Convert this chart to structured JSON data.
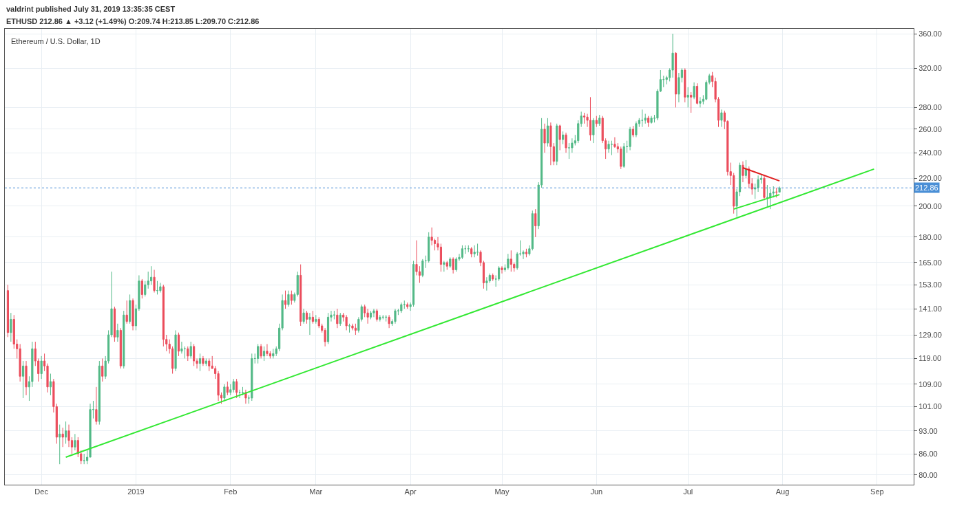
{
  "chart_data": {
    "type": "candlestick",
    "title": "Ethereum / U.S. Dollar, 1D",
    "subtitle": "valdrint published July 31, 2019 13:35:35 CEST",
    "annotations": [
      "ETHUSD 212.86 ▲ +3.12 (+1.49%) O:209.74 H:213.85 L:209.70 C:212.86"
    ],
    "log": "y",
    "grid": true,
    "xlim": [
      "2018-11-19",
      "2019-09-13"
    ],
    "xticks": [
      {
        "value": "2018-12-01",
        "label": "Dec"
      },
      {
        "value": "2019-01-01",
        "label": "2019"
      },
      {
        "value": "2019-02-01",
        "label": "Feb"
      },
      {
        "value": "2019-03-01",
        "label": "Mar"
      },
      {
        "value": "2019-04-01",
        "label": "Apr"
      },
      {
        "value": "2019-05-01",
        "label": "May"
      },
      {
        "value": "2019-06-01",
        "label": "Jun"
      },
      {
        "value": "2019-07-01",
        "label": "Jul"
      },
      {
        "value": "2019-08-01",
        "label": "Aug"
      },
      {
        "value": "2019-09-01",
        "label": "Sep"
      }
    ],
    "ylim": [
      77.4,
      366
    ],
    "yticks": [
      {
        "value": 80,
        "label": "80.00"
      },
      {
        "value": 86,
        "label": "86.00"
      },
      {
        "value": 93,
        "label": "93.00"
      },
      {
        "value": 101,
        "label": "101.00"
      },
      {
        "value": 109,
        "label": "109.00"
      },
      {
        "value": 119,
        "label": "119.00"
      },
      {
        "value": 129,
        "label": "129.00"
      },
      {
        "value": 141,
        "label": "141.00"
      },
      {
        "value": 153,
        "label": "153.00"
      },
      {
        "value": 165,
        "label": "165.00"
      },
      {
        "value": 180,
        "label": "180.00"
      },
      {
        "value": 200,
        "label": "200.00"
      },
      {
        "value": 220,
        "label": "220.00"
      },
      {
        "value": 240,
        "label": "240.00"
      },
      {
        "value": 260,
        "label": "260.00"
      },
      {
        "value": 280,
        "label": "280.00"
      },
      {
        "value": 320,
        "label": "320.00"
      },
      {
        "value": 360,
        "label": "360.00"
      }
    ],
    "ref_lines": [
      {
        "axis": "y",
        "value": 212.86,
        "label": "212.86",
        "color": "#4a8fd6",
        "line_style": "dotted"
      }
    ],
    "series": [
      {
        "colors": [
          "#eb4d5c",
          "#53b987",
          "#eb4d5c",
          "#eb4d5c",
          "#eb4d5c",
          "#53b987",
          "#eb4d5c",
          "#53b987",
          "#53b987",
          "#eb4d5c",
          "#eb4d5c",
          "#53b987",
          "#eb4d5c",
          "#eb4d5c",
          "#53b987",
          "#eb4d5c",
          "#eb4d5c",
          "#53b987",
          "#eb4d5c",
          "#53b987",
          "#eb4d5c",
          "#eb4d5c",
          "#53b987",
          "#eb4d5c",
          "#eb4d5c",
          "#53b987",
          "#53b987",
          "#53b987",
          "#53b987",
          "#eb4d5c",
          "#53b987",
          "#eb4d5c",
          "#53b987",
          "#53b987",
          "#53b987",
          "#eb4d5c",
          "#53b987",
          "#eb4d5c",
          "#53b987",
          "#eb4d5c",
          "#53b987",
          "#eb4d5c",
          "#53b987",
          "#53b987",
          "#eb4d5c",
          "#53b987",
          "#53b987",
          "#53b987",
          "#eb4d5c",
          "#53b987",
          "#53b987",
          "#eb4d5c",
          "#eb4d5c",
          "#eb4d5c",
          "#eb4d5c",
          "#53b987",
          "#eb4d5c",
          "#53b987",
          "#53b987",
          "#eb4d5c",
          "#53b987",
          "#eb4d5c",
          "#eb4d5c",
          "#53b987",
          "#eb4d5c",
          "#53b987",
          "#eb4d5c",
          "#eb4d5c",
          "#eb4d5c",
          "#eb4d5c",
          "#eb4d5c",
          "#53b987",
          "#eb4d5c",
          "#53b987",
          "#53b987",
          "#eb4d5c",
          "#53b987",
          "#53b987",
          "#eb4d5c",
          "#53b987",
          "#53b987",
          "#53b987",
          "#53b987",
          "#eb4d5c",
          "#53b987",
          "#eb4d5c",
          "#eb4d5c",
          "#53b987",
          "#53b987",
          "#53b987",
          "#53b987",
          "#eb4d5c",
          "#53b987",
          "#eb4d5c",
          "#53b987",
          "#53b987",
          "#eb4d5c",
          "#53b987",
          "#eb4d5c",
          "#53b987",
          "#eb4d5c",
          "#53b987",
          "#eb4d5c",
          "#eb4d5c",
          "#eb4d5c",
          "#53b987",
          "#53b987",
          "#53b987",
          "#eb4d5c",
          "#53b987",
          "#eb4d5c",
          "#eb4d5c",
          "#53b987",
          "#eb4d5c",
          "#eb4d5c",
          "#53b987",
          "#53b987",
          "#eb4d5c",
          "#eb4d5c",
          "#53b987",
          "#53b987",
          "#eb4d5c",
          "#53b987",
          "#53b987",
          "#53b987",
          "#eb4d5c",
          "#53b987",
          "#53b987",
          "#53b987",
          "#53b987",
          "#53b987",
          "#eb4d5c",
          "#53b987",
          "#53b987",
          "#eb4d5c",
          "#eb4d5c",
          "#53b987",
          "#53b987",
          "#53b987",
          "#eb4d5c",
          "#eb4d5c",
          "#eb4d5c",
          "#eb4d5c",
          "#53b987",
          "#eb4d5c",
          "#53b987",
          "#eb4d5c",
          "#53b987",
          "#53b987",
          "#53b987",
          "#53b987",
          "#53b987",
          "#eb4d5c",
          "#53b987",
          "#53b987",
          "#eb4d5c",
          "#eb4d5c",
          "#53b987",
          "#53b987",
          "#eb4d5c",
          "#53b987",
          "#53b987",
          "#eb4d5c",
          "#53b987",
          "#53b987",
          "#eb4d5c",
          "#eb4d5c",
          "#53b987",
          "#53b987",
          "#53b987",
          "#eb4d5c",
          "#53b987",
          "#53b987",
          "#eb4d5c",
          "#53b987",
          "#53b987",
          "#eb4d5c",
          "#53b987",
          "#eb4d5c",
          "#eb4d5c",
          "#53b987",
          "#eb4d5c",
          "#53b987",
          "#eb4d5c",
          "#53b987",
          "#53b987",
          "#53b987",
          "#53b987",
          "#53b987",
          "#eb4d5c",
          "#eb4d5c",
          "#eb4d5c",
          "#53b987",
          "#eb4d5c",
          "#53b987",
          "#eb4d5c",
          "#eb4d5c",
          "#53b987",
          "#53b987",
          "#eb4d5c",
          "#eb4d5c",
          "#eb4d5c",
          "#53b987",
          "#53b987",
          "#53b987",
          "#eb4d5c",
          "#53b987",
          "#53b987",
          "#53b987",
          "#53b987",
          "#eb4d5c",
          "#53b987",
          "#53b987",
          "#53b987",
          "#53b987",
          "#53b987",
          "#53b987",
          "#53b987",
          "#53b987",
          "#eb4d5c",
          "#53b987",
          "#53b987",
          "#eb4d5c",
          "#53b987",
          "#eb4d5c",
          "#53b987",
          "#eb4d5c",
          "#53b987",
          "#53b987",
          "#53b987",
          "#53b987",
          "#eb4d5c",
          "#eb4d5c",
          "#eb4d5c",
          "#53b987",
          "#eb4d5c",
          "#eb4d5c",
          "#eb4d5c",
          "#eb4d5c",
          "#53b987",
          "#53b987",
          "#eb4d5c",
          "#53b987",
          "#eb4d5c",
          "#eb4d5c",
          "#53b987",
          "#53b987",
          "#53b987",
          "#eb4d5c",
          "#53b987",
          "#53b987",
          "#53b987",
          "#eb4d5c",
          "#53b987"
        ],
        "x": [
          "2018-11-20",
          "2018-11-21",
          "2018-11-22",
          "2018-11-23",
          "2018-11-24",
          "2018-11-25",
          "2018-11-26",
          "2018-11-27",
          "2018-11-28",
          "2018-11-29",
          "2018-11-30",
          "2018-12-01",
          "2018-12-02",
          "2018-12-03",
          "2018-12-04",
          "2018-12-05",
          "2018-12-06",
          "2018-12-07",
          "2018-12-08",
          "2018-12-09",
          "2018-12-10",
          "2018-12-11",
          "2018-12-12",
          "2018-12-13",
          "2018-12-14",
          "2018-12-15",
          "2018-12-16",
          "2018-12-17",
          "2018-12-18",
          "2018-12-19",
          "2018-12-20",
          "2018-12-21",
          "2018-12-22",
          "2018-12-23",
          "2018-12-24",
          "2018-12-25",
          "2018-12-26",
          "2018-12-27",
          "2018-12-28",
          "2018-12-29",
          "2018-12-30",
          "2018-12-31",
          "2019-01-01",
          "2019-01-02",
          "2019-01-03",
          "2019-01-04",
          "2019-01-05",
          "2019-01-06",
          "2019-01-07",
          "2019-01-08",
          "2019-01-09",
          "2019-01-10",
          "2019-01-11",
          "2019-01-12",
          "2019-01-13",
          "2019-01-14",
          "2019-01-15",
          "2019-01-16",
          "2019-01-17",
          "2019-01-18",
          "2019-01-19",
          "2019-01-20",
          "2019-01-21",
          "2019-01-22",
          "2019-01-23",
          "2019-01-24",
          "2019-01-25",
          "2019-01-26",
          "2019-01-27",
          "2019-01-28",
          "2019-01-29",
          "2019-01-30",
          "2019-01-31",
          "2019-02-01",
          "2019-02-02",
          "2019-02-03",
          "2019-02-04",
          "2019-02-05",
          "2019-02-06",
          "2019-02-07",
          "2019-02-08",
          "2019-02-09",
          "2019-02-10",
          "2019-02-11",
          "2019-02-12",
          "2019-02-13",
          "2019-02-14",
          "2019-02-15",
          "2019-02-16",
          "2019-02-17",
          "2019-02-18",
          "2019-02-19",
          "2019-02-20",
          "2019-02-21",
          "2019-02-22",
          "2019-02-23",
          "2019-02-24",
          "2019-02-25",
          "2019-02-26",
          "2019-02-27",
          "2019-02-28",
          "2019-03-01",
          "2019-03-02",
          "2019-03-03",
          "2019-03-04",
          "2019-03-05",
          "2019-03-06",
          "2019-03-07",
          "2019-03-08",
          "2019-03-09",
          "2019-03-10",
          "2019-03-11",
          "2019-03-12",
          "2019-03-13",
          "2019-03-14",
          "2019-03-15",
          "2019-03-16",
          "2019-03-17",
          "2019-03-18",
          "2019-03-19",
          "2019-03-20",
          "2019-03-21",
          "2019-03-22",
          "2019-03-23",
          "2019-03-24",
          "2019-03-25",
          "2019-03-26",
          "2019-03-27",
          "2019-03-28",
          "2019-03-29",
          "2019-03-30",
          "2019-03-31",
          "2019-04-01",
          "2019-04-02",
          "2019-04-03",
          "2019-04-04",
          "2019-04-05",
          "2019-04-06",
          "2019-04-07",
          "2019-04-08",
          "2019-04-09",
          "2019-04-10",
          "2019-04-11",
          "2019-04-12",
          "2019-04-13",
          "2019-04-14",
          "2019-04-15",
          "2019-04-16",
          "2019-04-17",
          "2019-04-18",
          "2019-04-19",
          "2019-04-20",
          "2019-04-21",
          "2019-04-22",
          "2019-04-23",
          "2019-04-24",
          "2019-04-25",
          "2019-04-26",
          "2019-04-27",
          "2019-04-28",
          "2019-04-29",
          "2019-04-30",
          "2019-05-01",
          "2019-05-02",
          "2019-05-03",
          "2019-05-04",
          "2019-05-05",
          "2019-05-06",
          "2019-05-07",
          "2019-05-08",
          "2019-05-09",
          "2019-05-10",
          "2019-05-11",
          "2019-05-12",
          "2019-05-13",
          "2019-05-14",
          "2019-05-15",
          "2019-05-16",
          "2019-05-17",
          "2019-05-18",
          "2019-05-19",
          "2019-05-20",
          "2019-05-21",
          "2019-05-22",
          "2019-05-23",
          "2019-05-24",
          "2019-05-25",
          "2019-05-26",
          "2019-05-27",
          "2019-05-28",
          "2019-05-29",
          "2019-05-30",
          "2019-05-31",
          "2019-06-01",
          "2019-06-02",
          "2019-06-03",
          "2019-06-04",
          "2019-06-05",
          "2019-06-06",
          "2019-06-07",
          "2019-06-08",
          "2019-06-09",
          "2019-06-10",
          "2019-06-11",
          "2019-06-12",
          "2019-06-13",
          "2019-06-14",
          "2019-06-15",
          "2019-06-16",
          "2019-06-17",
          "2019-06-18",
          "2019-06-19",
          "2019-06-20",
          "2019-06-21",
          "2019-06-22",
          "2019-06-23",
          "2019-06-24",
          "2019-06-25",
          "2019-06-26",
          "2019-06-27",
          "2019-06-28",
          "2019-06-29",
          "2019-06-30",
          "2019-07-01",
          "2019-07-02",
          "2019-07-03",
          "2019-07-04",
          "2019-07-05",
          "2019-07-06",
          "2019-07-07",
          "2019-07-08",
          "2019-07-09",
          "2019-07-10",
          "2019-07-11",
          "2019-07-12",
          "2019-07-13",
          "2019-07-14",
          "2019-07-15",
          "2019-07-16",
          "2019-07-17",
          "2019-07-18",
          "2019-07-19",
          "2019-07-20",
          "2019-07-21",
          "2019-07-22",
          "2019-07-23",
          "2019-07-24",
          "2019-07-25",
          "2019-07-26",
          "2019-07-27",
          "2019-07-28",
          "2019-07-29",
          "2019-07-30",
          "2019-07-31"
        ],
        "ohlc": [
          [
            150,
            153,
            128,
            130
          ],
          [
            130,
            139,
            126,
            136
          ],
          [
            136,
            138,
            123,
            125
          ],
          [
            125,
            127,
            119,
            123
          ],
          [
            123,
            125,
            110,
            112
          ],
          [
            112,
            118,
            104,
            116
          ],
          [
            116,
            118,
            105,
            108
          ],
          [
            108,
            112,
            103,
            110
          ],
          [
            110,
            126,
            108,
            123
          ],
          [
            123,
            126,
            116,
            118
          ],
          [
            118,
            119,
            110,
            113
          ],
          [
            113,
            120,
            111,
            118
          ],
          [
            118,
            121,
            114,
            116
          ],
          [
            116,
            117,
            106,
            108
          ],
          [
            108,
            113,
            105,
            110
          ],
          [
            110,
            111,
            99,
            101
          ],
          [
            101,
            102,
            89,
            91
          ],
          [
            91,
            95,
            83,
            92
          ],
          [
            92,
            94,
            88,
            91
          ],
          [
            91,
            96,
            89,
            93
          ],
          [
            93,
            95,
            88,
            90
          ],
          [
            90,
            91,
            86,
            88
          ],
          [
            88,
            92,
            87,
            90
          ],
          [
            90,
            91,
            85,
            86
          ],
          [
            86,
            87,
            83,
            84
          ],
          [
            84,
            86,
            83,
            84
          ],
          [
            84,
            87,
            83,
            85
          ],
          [
            85,
            102,
            85,
            100
          ],
          [
            100,
            103,
            97,
            100
          ],
          [
            100,
            108,
            95,
            96
          ],
          [
            96,
            118,
            95,
            116
          ],
          [
            116,
            119,
            110,
            112
          ],
          [
            112,
            120,
            111,
            118
          ],
          [
            118,
            131,
            117,
            129
          ],
          [
            129,
            160,
            128,
            141
          ],
          [
            141,
            142,
            126,
            128
          ],
          [
            128,
            134,
            126,
            131
          ],
          [
            131,
            132,
            115,
            116
          ],
          [
            116,
            140,
            115,
            138
          ],
          [
            138,
            145,
            134,
            135
          ],
          [
            135,
            148,
            134,
            145
          ],
          [
            145,
            146,
            131,
            133
          ],
          [
            133,
            143,
            131,
            141
          ],
          [
            141,
            158,
            140,
            155
          ],
          [
            155,
            156,
            146,
            148
          ],
          [
            148,
            155,
            147,
            153
          ],
          [
            153,
            160,
            151,
            155
          ],
          [
            155,
            163,
            153,
            157
          ],
          [
            157,
            161,
            149,
            150
          ],
          [
            150,
            155,
            148,
            150
          ],
          [
            150,
            154,
            149,
            152
          ],
          [
            152,
            153,
            124,
            127
          ],
          [
            127,
            129,
            122,
            125
          ],
          [
            125,
            127,
            121,
            123
          ],
          [
            123,
            124,
            113,
            115
          ],
          [
            115,
            131,
            114,
            129
          ],
          [
            129,
            130,
            120,
            122
          ],
          [
            122,
            126,
            121,
            123
          ],
          [
            123,
            124,
            119,
            123
          ],
          [
            123,
            124,
            118,
            120
          ],
          [
            120,
            126,
            119,
            124
          ],
          [
            124,
            125,
            116,
            118
          ],
          [
            118,
            119,
            115,
            117
          ],
          [
            117,
            121,
            114,
            119
          ],
          [
            119,
            120,
            116,
            117
          ],
          [
            117,
            119,
            116,
            118
          ],
          [
            118,
            119,
            114,
            116
          ],
          [
            116,
            120,
            115,
            115
          ],
          [
            115,
            116,
            111,
            113
          ],
          [
            113,
            114,
            103,
            105
          ],
          [
            105,
            106,
            102,
            104
          ],
          [
            104,
            109,
            103,
            108
          ],
          [
            108,
            110,
            105,
            106
          ],
          [
            106,
            109,
            105,
            107
          ],
          [
            107,
            111,
            106,
            110
          ],
          [
            110,
            111,
            104,
            106
          ],
          [
            106,
            107,
            104,
            106
          ],
          [
            106,
            108,
            105,
            106
          ],
          [
            106,
            107,
            102,
            104
          ],
          [
            104,
            105,
            102,
            104
          ],
          [
            104,
            121,
            103,
            119
          ],
          [
            119,
            121,
            117,
            119
          ],
          [
            119,
            125,
            117,
            124
          ],
          [
            124,
            125,
            119,
            120
          ],
          [
            120,
            124,
            118,
            122
          ],
          [
            122,
            125,
            120,
            121
          ],
          [
            121,
            122,
            119,
            120
          ],
          [
            120,
            123,
            119,
            121
          ],
          [
            121,
            124,
            120,
            123
          ],
          [
            123,
            134,
            122,
            132
          ],
          [
            132,
            148,
            131,
            145
          ],
          [
            145,
            150,
            141,
            143
          ],
          [
            143,
            150,
            142,
            148
          ],
          [
            148,
            150,
            143,
            145
          ],
          [
            145,
            149,
            144,
            148
          ],
          [
            148,
            160,
            147,
            158
          ],
          [
            158,
            164,
            133,
            135
          ],
          [
            135,
            141,
            134,
            139
          ],
          [
            139,
            140,
            134,
            136
          ],
          [
            136,
            139,
            129,
            137
          ],
          [
            137,
            140,
            134,
            135
          ],
          [
            135,
            138,
            134,
            136
          ],
          [
            136,
            137,
            132,
            133
          ],
          [
            133,
            134,
            130,
            131
          ],
          [
            131,
            132,
            124,
            126
          ],
          [
            126,
            139,
            125,
            137
          ],
          [
            137,
            140,
            135,
            138
          ],
          [
            138,
            140,
            136,
            138
          ],
          [
            138,
            141,
            132,
            134
          ],
          [
            134,
            139,
            133,
            138
          ],
          [
            138,
            139,
            135,
            137
          ],
          [
            137,
            138,
            131,
            133
          ],
          [
            133,
            134,
            130,
            133
          ],
          [
            133,
            134,
            131,
            132
          ],
          [
            132,
            134,
            129,
            131
          ],
          [
            131,
            137,
            130,
            136
          ],
          [
            136,
            143,
            135,
            142
          ],
          [
            142,
            143,
            137,
            139
          ],
          [
            139,
            141,
            134,
            137
          ],
          [
            137,
            140,
            136,
            139
          ],
          [
            139,
            141,
            137,
            140
          ],
          [
            140,
            141,
            135,
            136
          ],
          [
            136,
            138,
            135,
            137
          ],
          [
            137,
            138,
            136,
            137
          ],
          [
            137,
            138,
            135,
            137
          ],
          [
            137,
            138,
            132,
            134
          ],
          [
            134,
            136,
            133,
            135
          ],
          [
            135,
            141,
            134,
            140
          ],
          [
            140,
            141,
            138,
            140
          ],
          [
            140,
            144,
            139,
            143
          ],
          [
            143,
            145,
            141,
            143
          ],
          [
            143,
            144,
            141,
            142
          ],
          [
            142,
            144,
            140,
            143
          ],
          [
            143,
            166,
            142,
            164
          ],
          [
            164,
            178,
            158,
            160
          ],
          [
            160,
            163,
            154,
            158
          ],
          [
            158,
            167,
            157,
            166
          ],
          [
            166,
            169,
            162,
            166
          ],
          [
            166,
            183,
            165,
            180
          ],
          [
            180,
            186,
            175,
            178
          ],
          [
            178,
            179,
            172,
            176
          ],
          [
            176,
            180,
            172,
            174
          ],
          [
            174,
            176,
            160,
            164
          ],
          [
            164,
            166,
            160,
            165
          ],
          [
            165,
            166,
            161,
            163
          ],
          [
            163,
            168,
            162,
            167
          ],
          [
            167,
            168,
            159,
            161
          ],
          [
            161,
            168,
            160,
            167
          ],
          [
            167,
            170,
            166,
            168
          ],
          [
            168,
            175,
            167,
            173
          ],
          [
            173,
            175,
            170,
            173
          ],
          [
            173,
            175,
            171,
            173
          ],
          [
            173,
            174,
            168,
            170
          ],
          [
            170,
            175,
            168,
            171
          ],
          [
            171,
            176,
            169,
            171
          ],
          [
            171,
            172,
            163,
            165
          ],
          [
            165,
            166,
            151,
            154
          ],
          [
            154,
            157,
            150,
            155
          ],
          [
            155,
            159,
            154,
            158
          ],
          [
            158,
            159,
            155,
            156
          ],
          [
            156,
            158,
            152,
            156
          ],
          [
            156,
            163,
            155,
            162
          ],
          [
            162,
            163,
            159,
            161
          ],
          [
            161,
            164,
            160,
            162
          ],
          [
            162,
            170,
            161,
            167
          ],
          [
            167,
            172,
            160,
            164
          ],
          [
            164,
            165,
            160,
            162
          ],
          [
            162,
            171,
            161,
            170
          ],
          [
            170,
            178,
            169,
            170
          ],
          [
            170,
            172,
            167,
            171
          ],
          [
            171,
            173,
            168,
            170
          ],
          [
            170,
            175,
            169,
            173
          ],
          [
            173,
            197,
            172,
            195
          ],
          [
            195,
            198,
            180,
            187
          ],
          [
            187,
            217,
            185,
            215
          ],
          [
            215,
            270,
            213,
            260
          ],
          [
            260,
            265,
            240,
            248
          ],
          [
            248,
            270,
            245,
            263
          ],
          [
            263,
            266,
            230,
            245
          ],
          [
            245,
            248,
            230,
            233
          ],
          [
            233,
            265,
            230,
            263
          ],
          [
            263,
            264,
            242,
            251
          ],
          [
            251,
            258,
            247,
            255
          ],
          [
            255,
            257,
            240,
            244
          ],
          [
            244,
            248,
            235,
            244
          ],
          [
            244,
            252,
            240,
            248
          ],
          [
            248,
            255,
            246,
            250
          ],
          [
            250,
            268,
            248,
            265
          ],
          [
            265,
            276,
            262,
            272
          ],
          [
            272,
            275,
            265,
            271
          ],
          [
            271,
            274,
            262,
            268
          ],
          [
            268,
            290,
            250,
            255
          ],
          [
            255,
            270,
            248,
            268
          ],
          [
            268,
            272,
            262,
            265
          ],
          [
            265,
            273,
            263,
            270
          ],
          [
            270,
            272,
            248,
            250
          ],
          [
            250,
            252,
            235,
            243
          ],
          [
            243,
            250,
            240,
            247
          ],
          [
            247,
            250,
            238,
            247
          ],
          [
            247,
            253,
            244,
            245
          ],
          [
            245,
            248,
            240,
            243
          ],
          [
            243,
            245,
            227,
            229
          ],
          [
            229,
            248,
            228,
            245
          ],
          [
            245,
            250,
            240,
            245
          ],
          [
            245,
            262,
            242,
            260
          ],
          [
            260,
            263,
            253,
            255
          ],
          [
            255,
            267,
            253,
            265
          ],
          [
            265,
            270,
            262,
            268
          ],
          [
            268,
            278,
            262,
            268
          ],
          [
            268,
            274,
            265,
            270
          ],
          [
            270,
            272,
            262,
            266
          ],
          [
            266,
            272,
            265,
            270
          ],
          [
            270,
            273,
            266,
            270
          ],
          [
            270,
            298,
            268,
            296
          ],
          [
            296,
            318,
            295,
            308
          ],
          [
            308,
            312,
            300,
            308
          ],
          [
            308,
            312,
            303,
            310
          ],
          [
            310,
            320,
            306,
            318
          ],
          [
            318,
            360,
            310,
            337
          ],
          [
            337,
            338,
            280,
            293
          ],
          [
            293,
            315,
            285,
            310
          ],
          [
            310,
            320,
            305,
            318
          ],
          [
            318,
            320,
            285,
            290
          ],
          [
            290,
            300,
            280,
            292
          ],
          [
            292,
            295,
            275,
            290
          ],
          [
            290,
            305,
            288,
            301
          ],
          [
            301,
            304,
            283,
            284
          ],
          [
            284,
            290,
            280,
            286
          ],
          [
            286,
            292,
            283,
            288
          ],
          [
            288,
            307,
            287,
            305
          ],
          [
            305,
            314,
            303,
            312
          ],
          [
            312,
            316,
            300,
            306
          ],
          [
            306,
            310,
            285,
            288
          ],
          [
            288,
            290,
            262,
            268
          ],
          [
            268,
            278,
            262,
            275
          ],
          [
            275,
            277,
            260,
            267
          ],
          [
            267,
            268,
            222,
            225
          ],
          [
            225,
            232,
            215,
            222
          ],
          [
            222,
            224,
            195,
            200
          ],
          [
            200,
            212,
            193,
            210
          ],
          [
            210,
            232,
            207,
            230
          ],
          [
            230,
            233,
            217,
            222
          ],
          [
            222,
            234,
            220,
            227
          ],
          [
            227,
            229,
            213,
            216
          ],
          [
            216,
            220,
            208,
            212
          ],
          [
            212,
            216,
            205,
            213
          ],
          [
            213,
            222,
            210,
            219
          ],
          [
            219,
            223,
            216,
            220
          ],
          [
            220,
            222,
            204,
            206
          ],
          [
            206,
            215,
            200,
            206
          ],
          [
            206,
            212,
            198,
            209
          ],
          [
            209,
            214,
            206,
            210
          ],
          [
            210,
            213,
            206,
            209.74
          ],
          [
            209.74,
            213.85,
            209.7,
            212.86
          ]
        ]
      },
      {
        "type": "line",
        "color": "#33e833",
        "x": [
          "2018-12-09",
          "2019-08-31"
        ],
        "values": [
          85,
          227
        ]
      },
      {
        "type": "line",
        "color": "#e02020",
        "x": [
          "2019-07-19",
          "2019-07-31"
        ],
        "values": [
          228,
          218
        ]
      },
      {
        "type": "line",
        "color": "#33e833",
        "x": [
          "2019-07-16",
          "2019-07-31"
        ],
        "values": [
          198,
          208
        ]
      }
    ]
  }
}
